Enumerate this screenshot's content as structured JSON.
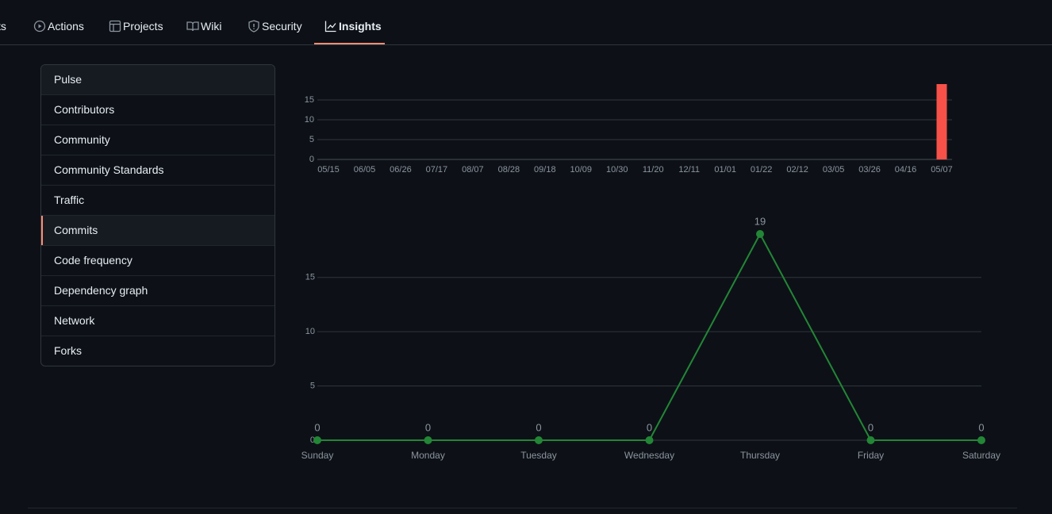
{
  "nav": {
    "tabs": [
      "ts",
      "Actions",
      "Projects",
      "Wiki",
      "Security",
      "Insights"
    ],
    "selected": 5
  },
  "sidebar": {
    "items": [
      "Pulse",
      "Contributors",
      "Community",
      "Community Standards",
      "Traffic",
      "Commits",
      "Code frequency",
      "Dependency graph",
      "Network",
      "Forks"
    ],
    "selected": 5
  },
  "chart_data": [
    {
      "type": "bar",
      "color": "#f85149",
      "grid": true,
      "categories": [
        "05/15",
        null,
        null,
        "06/05",
        null,
        null,
        "06/26",
        null,
        null,
        "07/17",
        null,
        null,
        "08/07",
        null,
        null,
        "08/28",
        null,
        null,
        "09/18",
        null,
        null,
        "10/09",
        null,
        null,
        "10/30",
        null,
        null,
        "11/20",
        null,
        null,
        "12/11",
        null,
        null,
        "01/01",
        null,
        null,
        "01/22",
        null,
        null,
        "02/12",
        null,
        null,
        "03/05",
        null,
        null,
        "03/26",
        null,
        null,
        "04/16",
        null,
        null,
        "05/07"
      ],
      "values": [
        0,
        0,
        0,
        0,
        0,
        0,
        0,
        0,
        0,
        0,
        0,
        0,
        0,
        0,
        0,
        0,
        0,
        0,
        0,
        0,
        0,
        0,
        0,
        0,
        0,
        0,
        0,
        0,
        0,
        0,
        0,
        0,
        0,
        0,
        0,
        0,
        0,
        0,
        0,
        0,
        0,
        0,
        0,
        0,
        0,
        0,
        0,
        0,
        0,
        0,
        0,
        19
      ],
      "ylim": [
        0,
        19
      ],
      "yticks": [
        0,
        5,
        10,
        15
      ]
    },
    {
      "type": "line",
      "color": "#238636",
      "grid": true,
      "categories": [
        "Sunday",
        "Monday",
        "Tuesday",
        "Wednesday",
        "Thursday",
        "Friday",
        "Saturday"
      ],
      "values": [
        0,
        0,
        0,
        0,
        19,
        0,
        0
      ],
      "ylim": [
        0,
        19
      ],
      "yticks": [
        0,
        5,
        10,
        15
      ]
    }
  ]
}
